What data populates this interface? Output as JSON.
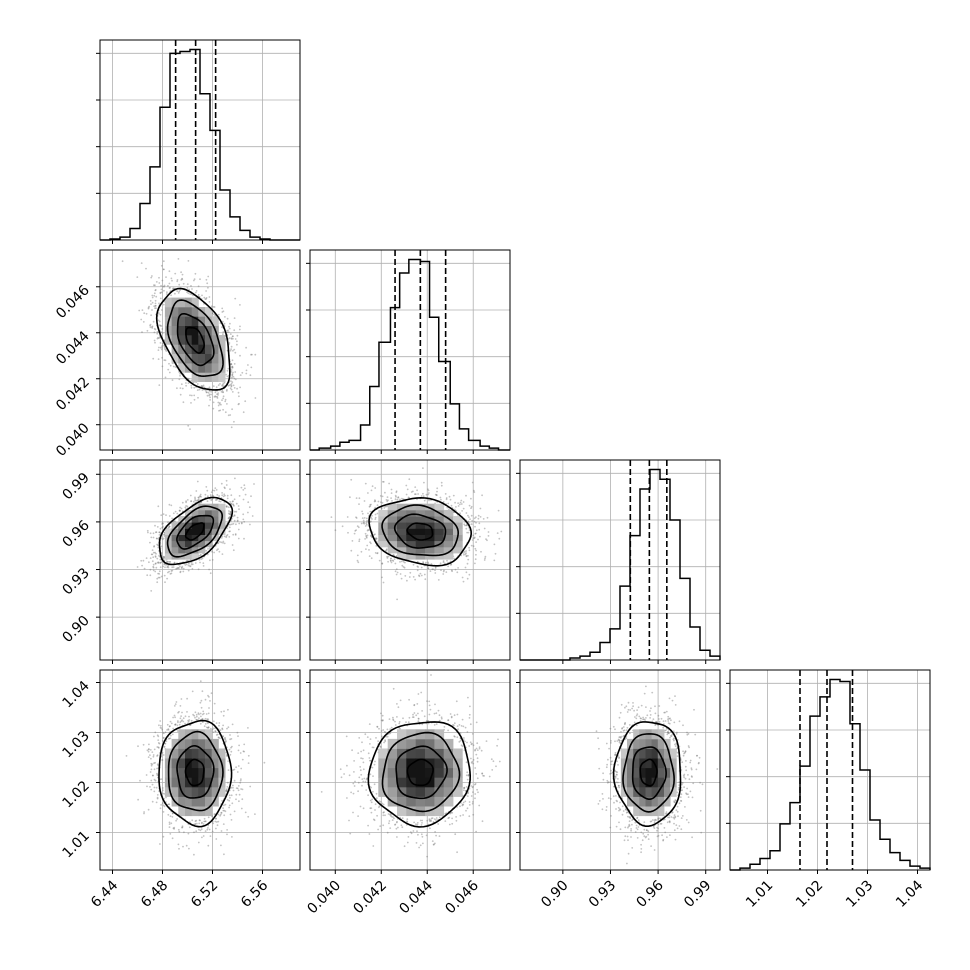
{
  "chart_data": {
    "type": "corner",
    "grid": true,
    "parameters": [
      {
        "range": [
          6.43,
          6.59
        ],
        "ticks": [
          6.44,
          6.48,
          6.52,
          6.56
        ],
        "tick_labels": [
          "6.44",
          "6.48",
          "6.52",
          "6.56"
        ],
        "mean": 6.506,
        "sigma": 0.0145,
        "quantiles": [
          6.4905,
          6.5065,
          6.5225
        ],
        "hist_bins": [
          6.43,
          6.438,
          6.446,
          6.454,
          6.462,
          6.47,
          6.478,
          6.486,
          6.494,
          6.502,
          6.51,
          6.518,
          6.526,
          6.534,
          6.542,
          6.55,
          6.558,
          6.566,
          6.574,
          6.582,
          6.59
        ],
        "hist_counts": [
          0.0,
          0.005,
          0.015,
          0.06,
          0.19,
          0.38,
          0.69,
          0.97,
          0.98,
          0.99,
          0.76,
          0.57,
          0.26,
          0.12,
          0.05,
          0.015,
          0.005,
          0.0,
          0.0,
          0.0
        ]
      },
      {
        "range": [
          0.0389,
          0.0476
        ],
        "ticks": [
          0.04,
          0.042,
          0.044,
          0.046
        ],
        "tick_labels": [
          "0.040",
          "0.042",
          "0.044",
          "0.046"
        ],
        "mean": 0.0437,
        "sigma": 0.0011,
        "quantiles": [
          0.0426,
          0.0437,
          0.0448
        ],
        "hist_bins": [
          0.0389,
          0.0393,
          0.0398,
          0.0402,
          0.0406,
          0.0411,
          0.0415,
          0.0419,
          0.0424,
          0.0428,
          0.0432,
          0.0437,
          0.0441,
          0.0445,
          0.045,
          0.0454,
          0.0458,
          0.0463,
          0.0467,
          0.0471,
          0.0476
        ],
        "hist_counts": [
          0.0,
          0.01,
          0.02,
          0.04,
          0.05,
          0.13,
          0.33,
          0.56,
          0.74,
          0.92,
          0.99,
          0.98,
          0.69,
          0.46,
          0.24,
          0.11,
          0.05,
          0.02,
          0.01,
          0.0
        ]
      },
      {
        "range": [
          0.873,
          0.999
        ],
        "ticks": [
          0.9,
          0.93,
          0.96,
          0.99
        ],
        "tick_labels": [
          "0.90",
          "0.93",
          "0.96",
          "0.99"
        ],
        "mean": 0.954,
        "sigma": 0.0105,
        "quantiles": [
          0.9425,
          0.9545,
          0.9655
        ],
        "hist_bins": [
          0.873,
          0.8793,
          0.8856,
          0.8919,
          0.8982,
          0.9045,
          0.9108,
          0.9171,
          0.9234,
          0.9297,
          0.936,
          0.9423,
          0.9486,
          0.9549,
          0.9612,
          0.9675,
          0.9738,
          0.9801,
          0.9864,
          0.9927,
          0.999
        ],
        "hist_counts": [
          0.0,
          0.0,
          0.0,
          0.0,
          0.0,
          0.01,
          0.02,
          0.04,
          0.09,
          0.16,
          0.38,
          0.64,
          0.88,
          0.98,
          0.93,
          0.72,
          0.42,
          0.17,
          0.05,
          0.02
        ]
      },
      {
        "range": [
          1.0025,
          1.0425
        ],
        "ticks": [
          1.01,
          1.02,
          1.03,
          1.04
        ],
        "tick_labels": [
          "1.01",
          "1.02",
          "1.03",
          "1.04"
        ],
        "mean": 1.022,
        "sigma": 0.0052,
        "quantiles": [
          1.0165,
          1.0219,
          1.027
        ],
        "hist_bins": [
          1.0025,
          1.0045,
          1.0065,
          1.0085,
          1.0105,
          1.0125,
          1.0145,
          1.0165,
          1.0185,
          1.0205,
          1.0225,
          1.0245,
          1.0265,
          1.0285,
          1.0305,
          1.0325,
          1.0345,
          1.0365,
          1.0385,
          1.0405,
          1.0425
        ],
        "hist_counts": [
          0.0,
          0.01,
          0.03,
          0.06,
          0.1,
          0.24,
          0.35,
          0.54,
          0.8,
          0.9,
          0.99,
          0.98,
          0.76,
          0.52,
          0.26,
          0.16,
          0.09,
          0.05,
          0.02,
          0.01
        ]
      }
    ],
    "pairs": [
      {
        "x": 0,
        "y": 1,
        "correlation": -0.45
      },
      {
        "x": 0,
        "y": 2,
        "correlation": 0.55
      },
      {
        "x": 1,
        "y": 2,
        "correlation": -0.15
      },
      {
        "x": 0,
        "y": 3,
        "correlation": 0.0
      },
      {
        "x": 1,
        "y": 3,
        "correlation": 0.05
      },
      {
        "x": 2,
        "y": 3,
        "correlation": 0.0
      }
    ],
    "contour_levels_sigma": [
      0.5,
      1.0,
      1.5,
      2.0
    ]
  }
}
